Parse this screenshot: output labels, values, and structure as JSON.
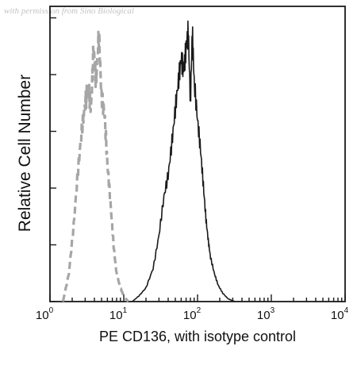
{
  "watermark": "with permission from Sino Biological",
  "chart_data": {
    "type": "line",
    "title": "",
    "xlabel": "PE CD136, with isotype control",
    "ylabel": "Relative Cell Number",
    "xscale": "log",
    "xlim": [
      1,
      10000
    ],
    "ylim": [
      0,
      1
    ],
    "grid": false,
    "legend": "none",
    "x_ticks": [
      {
        "value": 1,
        "base": "10",
        "exp": "0"
      },
      {
        "value": 10,
        "base": "10",
        "exp": "1"
      },
      {
        "value": 100,
        "base": "10",
        "exp": "2"
      },
      {
        "value": 1000,
        "base": "10",
        "exp": "3"
      },
      {
        "value": 10000,
        "base": "10",
        "exp": "4"
      }
    ],
    "series": [
      {
        "style": "dashed",
        "color": "#a6a6a6",
        "x": [
          1.5,
          1.8,
          2.1,
          2.4,
          2.7,
          3.0,
          3.3,
          3.6,
          3.9,
          4.2,
          4.6,
          5.0,
          5.5,
          6.0,
          6.6,
          7.3,
          8.0,
          9.0,
          10.0,
          11.5
        ],
        "y": [
          0.0,
          0.1,
          0.28,
          0.48,
          0.62,
          0.72,
          0.78,
          0.7,
          0.92,
          0.8,
          0.97,
          0.74,
          0.68,
          0.5,
          0.36,
          0.2,
          0.1,
          0.05,
          0.02,
          0.0
        ]
      },
      {
        "style": "solid",
        "color": "#1a1a1a",
        "x": [
          13,
          16,
          20,
          25,
          30,
          35,
          40,
          45,
          50,
          55,
          60,
          65,
          70,
          75,
          80,
          85,
          90,
          100,
          110,
          120,
          130,
          140,
          150,
          170,
          190,
          220,
          260,
          320
        ],
        "y": [
          0.0,
          0.02,
          0.05,
          0.12,
          0.24,
          0.38,
          0.46,
          0.58,
          0.7,
          0.8,
          0.88,
          0.84,
          0.92,
          0.98,
          0.72,
          0.98,
          0.8,
          0.66,
          0.55,
          0.42,
          0.3,
          0.22,
          0.16,
          0.1,
          0.06,
          0.03,
          0.01,
          0.0
        ]
      }
    ]
  }
}
